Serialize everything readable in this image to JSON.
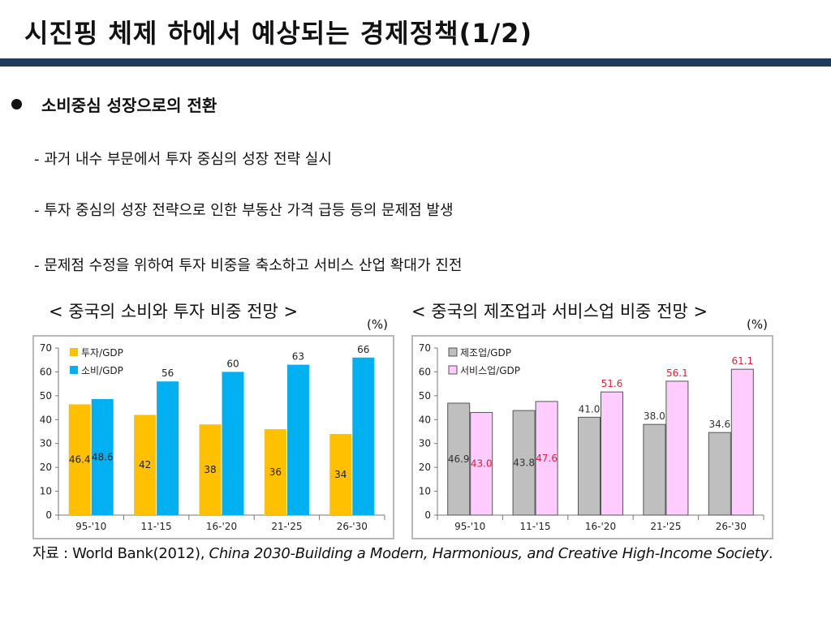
{
  "slide": {
    "title": "시진핑 체제 하에서 예상되는 경제정책(1/2)",
    "bullet": "소비중심 성장으로의 전환",
    "subpoints": [
      "- 과거 내수 부문에서 투자 중심의 성장 전략 실시",
      "- 투자 중심의 성장 전략으로 인한 부동산 가격 급등 등의 문제점 발생",
      "- 문제점 수정을 위하여 투자 비중을 축소하고 서비스 산업 확대가 진전"
    ],
    "source_prefix": "자료 : World Bank(2012), ",
    "source_italic": "China 2030-Building a Modern, Harmonious, and Creative High-Income Society",
    "source_suffix": "."
  },
  "chart_data": [
    {
      "type": "bar",
      "title": "< 중국의 소비와 투자 비중 전망 >",
      "unit": "(%)",
      "categories": [
        "95-'10",
        "11-'15",
        "16-'20",
        "21-'25",
        "26-'30"
      ],
      "series": [
        {
          "name": "투자/GDP",
          "values": [
            46.4,
            42,
            38,
            36,
            34
          ],
          "labels": [
            "46.4",
            "42",
            "38",
            "36",
            "34"
          ],
          "color": "#ffc000",
          "label_color": "#222222",
          "label_pos": "inside"
        },
        {
          "name": "소비/GDP",
          "values": [
            48.6,
            56,
            60,
            63,
            66
          ],
          "labels": [
            "48.6",
            "56",
            "60",
            "63",
            "66"
          ],
          "color": "#00b0f0",
          "label_color": "#222222",
          "label_pos": "top",
          "first_label_pos": "inside"
        }
      ],
      "ylim": [
        0,
        70
      ],
      "yticks": [
        "0",
        "10",
        "20",
        "30",
        "40",
        "50",
        "60",
        "70"
      ],
      "grid": false,
      "legend": "top-left"
    },
    {
      "type": "bar",
      "title": "< 중국의 제조업과 서비스업 비중 전망 >",
      "unit": "(%)",
      "categories": [
        "95-'10",
        "11-'15",
        "16-'20",
        "21-'25",
        "26-'30"
      ],
      "series": [
        {
          "name": "제조업/GDP",
          "values": [
            46.9,
            43.8,
            41.0,
            38.0,
            34.6
          ],
          "labels": [
            "46.9",
            "43.8",
            "41.0",
            "38.0",
            "34.6"
          ],
          "color": "#bfbfbf",
          "label_color": "#333333",
          "label_pos": "top",
          "early_label_pos": "inside"
        },
        {
          "name": "서비스업/GDP",
          "values": [
            43.0,
            47.6,
            51.6,
            56.1,
            61.1
          ],
          "labels": [
            "43.0",
            "47.6",
            "51.6",
            "56.1",
            "61.1"
          ],
          "color": "#ffccff",
          "label_color": "#e0203a",
          "label_pos": "top",
          "early_label_pos": "inside"
        }
      ],
      "ylim": [
        0,
        70
      ],
      "yticks": [
        "0",
        "10",
        "20",
        "30",
        "40",
        "50",
        "60",
        "70"
      ],
      "grid": false,
      "legend": "top-left"
    }
  ]
}
